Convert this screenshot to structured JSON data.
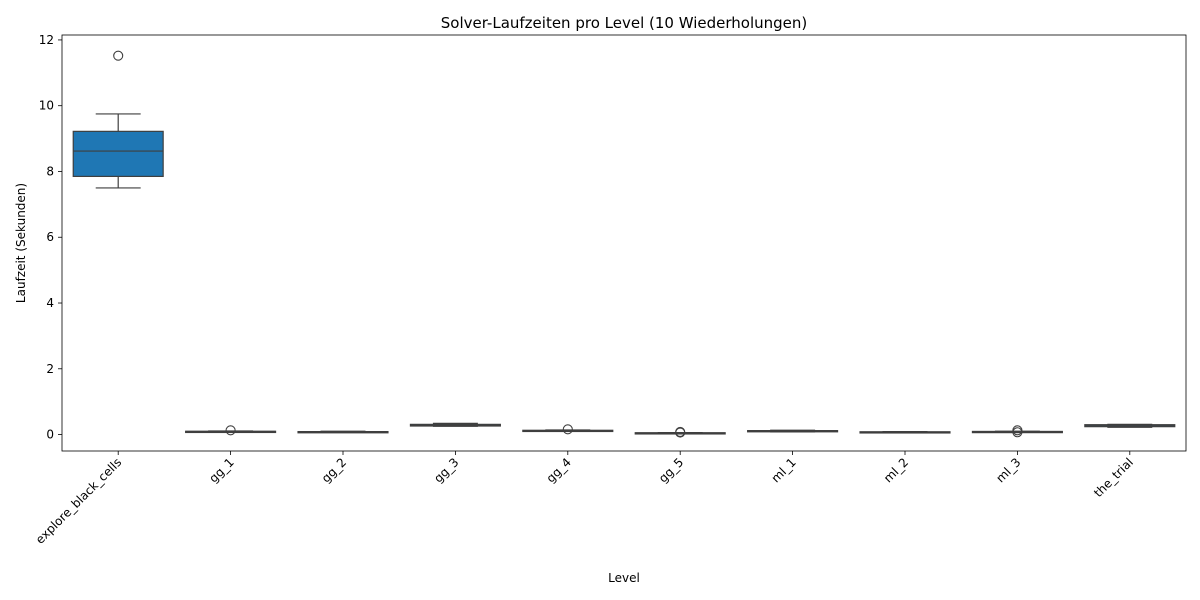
{
  "chart_data": {
    "type": "box",
    "title": "Solver-Laufzeiten pro Level (10 Wiederholungen)",
    "xlabel": "Level",
    "ylabel": "Laufzeit (Sekunden)",
    "ylim": [
      -0.5,
      12.15
    ],
    "yticks": [
      0,
      2,
      4,
      6,
      8,
      10,
      12
    ],
    "grid": false,
    "box_color": "#1f77b4",
    "categories": [
      "explore_black_cells",
      "gg_1",
      "gg_2",
      "gg_3",
      "gg_4",
      "gg_5",
      "ml_1",
      "ml_2",
      "ml_3",
      "the_trial"
    ],
    "boxes": [
      {
        "min": 7.5,
        "q1": 7.85,
        "median": 8.62,
        "q3": 9.22,
        "max": 9.75,
        "outliers": [
          11.52
        ]
      },
      {
        "min": 0.08,
        "q1": 0.09,
        "median": 0.095,
        "q3": 0.1,
        "max": 0.11,
        "outliers": [
          0.13
        ]
      },
      {
        "min": 0.07,
        "q1": 0.075,
        "median": 0.08,
        "q3": 0.09,
        "max": 0.1,
        "outliers": []
      },
      {
        "min": 0.25,
        "q1": 0.26,
        "median": 0.28,
        "q3": 0.31,
        "max": 0.34,
        "outliers": []
      },
      {
        "min": 0.1,
        "q1": 0.11,
        "median": 0.12,
        "q3": 0.13,
        "max": 0.14,
        "outliers": [
          0.16
        ]
      },
      {
        "min": 0.04,
        "q1": 0.045,
        "median": 0.05,
        "q3": 0.055,
        "max": 0.06,
        "outliers": [
          0.06,
          0.08
        ]
      },
      {
        "min": 0.08,
        "q1": 0.09,
        "median": 0.1,
        "q3": 0.12,
        "max": 0.13,
        "outliers": []
      },
      {
        "min": 0.06,
        "q1": 0.065,
        "median": 0.075,
        "q3": 0.085,
        "max": 0.09,
        "outliers": []
      },
      {
        "min": 0.07,
        "q1": 0.085,
        "median": 0.09,
        "q3": 0.095,
        "max": 0.1,
        "outliers": [
          0.07,
          0.13
        ]
      },
      {
        "min": 0.22,
        "q1": 0.24,
        "median": 0.27,
        "q3": 0.3,
        "max": 0.31,
        "outliers": []
      }
    ]
  }
}
